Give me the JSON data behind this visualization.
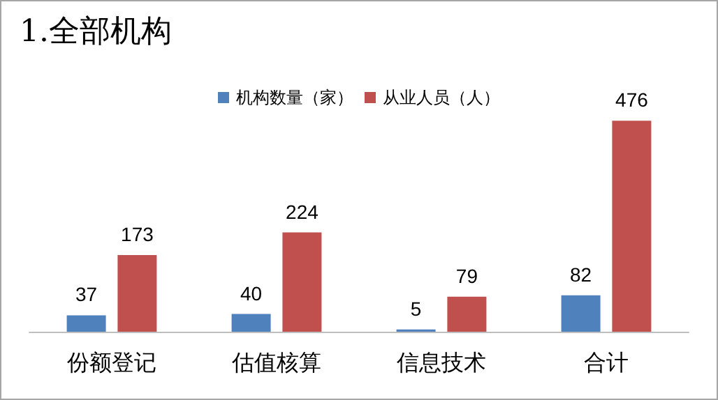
{
  "chart_data": {
    "type": "bar",
    "title": "1.全部机构",
    "categories": [
      "份额登记",
      "估值核算",
      "信息技术",
      "合计"
    ],
    "series": [
      {
        "name": "机构数量（家）",
        "color": "#4f81bd",
        "values": [
          37,
          40,
          5,
          82
        ]
      },
      {
        "name": "从业人员（人）",
        "color": "#c0504d",
        "values": [
          173,
          224,
          79,
          476
        ]
      }
    ],
    "data_labels": true,
    "legend": "top"
  }
}
